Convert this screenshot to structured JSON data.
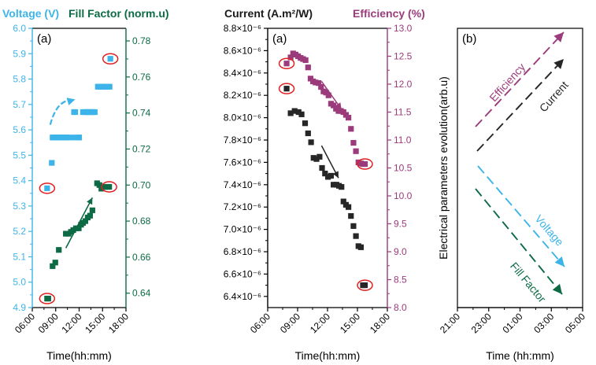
{
  "colors": {
    "voltage": "#3db4e9",
    "fill_factor": "#0c6b45",
    "current": "#262626",
    "efficiency": "#9b3b7b",
    "marker_circle": "#e02020"
  },
  "chart_data": [
    {
      "type": "scatter",
      "panel_label": "(a)",
      "xlabel": "Time(hh:mm)",
      "xlim": [
        6,
        18
      ],
      "xticks": [
        "06:00",
        "09:00",
        "12:00",
        "15:00",
        "18:00"
      ],
      "y_left": {
        "label": "Voltage (V)",
        "ylim": [
          4.9,
          6.0
        ],
        "ticks": [
          "4.9",
          "5.0",
          "5.1",
          "5.2",
          "5.3",
          "5.4",
          "5.5",
          "5.6",
          "5.7",
          "5.8",
          "5.9",
          "6.0"
        ]
      },
      "y_right": {
        "label": "Fill Factor (norm.u)",
        "ylim": [
          0.632,
          0.787
        ],
        "ticks": [
          "0.64",
          "0.66",
          "0.68",
          "0.70",
          "0.72",
          "0.74",
          "0.76",
          "0.78"
        ]
      },
      "series": [
        {
          "name": "Voltage (V)",
          "axis": "left",
          "x": [
            7.9,
            8.5,
            8.6,
            8.75,
            8.9,
            9.05,
            9.2,
            9.35,
            9.5,
            9.65,
            9.8,
            9.95,
            10.1,
            10.25,
            10.4,
            10.5,
            11.2,
            11.35,
            11.5,
            11.85,
            12.0,
            12.5,
            12.65,
            12.8,
            12.95,
            13.1,
            13.25,
            13.4,
            13.55,
            13.7,
            13.85,
            14.0,
            14.4,
            14.55,
            14.7,
            14.85,
            15.0,
            15.15,
            15.3,
            15.45,
            15.6,
            15.75,
            15.9,
            16.0
          ],
          "y": [
            5.37,
            5.47,
            5.57,
            5.57,
            5.57,
            5.57,
            5.57,
            5.57,
            5.57,
            5.57,
            5.57,
            5.57,
            5.57,
            5.57,
            5.57,
            5.57,
            5.57,
            5.67,
            5.67,
            5.57,
            5.57,
            5.67,
            5.67,
            5.67,
            5.67,
            5.67,
            5.67,
            5.67,
            5.67,
            5.67,
            5.67,
            5.67,
            5.77,
            5.77,
            5.77,
            5.77,
            5.77,
            5.77,
            5.77,
            5.77,
            5.77,
            5.77,
            5.77,
            5.88
          ],
          "circled_x": [
            7.9,
            16.0
          ]
        },
        {
          "name": "Fill Factor (norm.u)",
          "axis": "right",
          "x": [
            7.9,
            8.05,
            8.6,
            8.95,
            9.4,
            10.3,
            10.65,
            10.95,
            11.25,
            11.6,
            11.95,
            12.25,
            12.5,
            12.8,
            13.1,
            13.4,
            13.7,
            14.3,
            14.6,
            14.85,
            15.1,
            15.35,
            15.6,
            15.85
          ],
          "y": [
            0.637,
            0.637,
            0.655,
            0.657,
            0.664,
            0.673,
            0.673,
            0.674,
            0.675,
            0.676,
            0.676,
            0.678,
            0.679,
            0.68,
            0.682,
            0.683,
            0.686,
            0.701,
            0.7,
            0.698,
            0.699,
            0.699,
            0.699,
            0.699
          ],
          "circled_x": [
            7.9,
            15.85
          ]
        }
      ],
      "arrows": [
        {
          "series": "Voltage (V)",
          "from": [
            8.3,
            5.62
          ],
          "to": [
            11.5,
            5.72
          ],
          "curved": true
        },
        {
          "series": "Fill Factor (norm.u)",
          "from": [
            10.3,
            0.665
          ],
          "to": [
            13.7,
            0.693
          ]
        }
      ]
    },
    {
      "type": "scatter",
      "panel_label": "(a)",
      "xlabel": "Time(hh:mm)",
      "xlim": [
        6,
        18
      ],
      "xticks": [
        "06:00",
        "09:00",
        "12:00",
        "15:00",
        "18:00"
      ],
      "y_left": {
        "label": "Current (A.m²/W)",
        "ylim": [
          6.3e-06,
          8.8e-06
        ],
        "ticks": [
          "6.4×10⁻⁶",
          "6.6×10⁻⁶",
          "6.8×10⁻⁶",
          "7.0×10⁻⁶",
          "7.2×10⁻⁶",
          "7.4×10⁻⁶",
          "7.6×10⁻⁶",
          "7.8×10⁻⁶",
          "8.0×10⁻⁶",
          "8.2×10⁻⁶",
          "8.4×10⁻⁶",
          "8.6×10⁻⁶",
          "8.8×10⁻⁶"
        ]
      },
      "y_right": {
        "label": "Efficiency (%)",
        "ylim": [
          8.0,
          13.0
        ],
        "ticks": [
          "8.0",
          "8.5",
          "9.0",
          "9.5",
          "10.0",
          "10.5",
          "11.0",
          "11.5",
          "12.0",
          "12.5",
          "13.0"
        ]
      },
      "series": [
        {
          "name": "Current (A.m²/W)",
          "axis": "left",
          "x": [
            7.9,
            8.3,
            8.7,
            9.1,
            9.4,
            9.75,
            10.05,
            10.35,
            10.6,
            10.9,
            11.2,
            11.45,
            11.75,
            12.05,
            12.35,
            12.6,
            12.9,
            13.15,
            13.4,
            13.6,
            13.85,
            14.1,
            14.35,
            14.6,
            14.85,
            15.1,
            15.35,
            15.55,
            15.75
          ],
          "y": [
            8.26e-06,
            8.04e-06,
            8.06e-06,
            8.05e-06,
            8.03e-06,
            7.95e-06,
            7.86e-06,
            7.78e-06,
            7.64e-06,
            7.63e-06,
            7.65e-06,
            7.55e-06,
            7.5e-06,
            7.47e-06,
            7.48e-06,
            7.4e-06,
            7.4e-06,
            7.39e-06,
            7.38e-06,
            7.25e-06,
            7.22e-06,
            7.2e-06,
            7.12e-06,
            7.03e-06,
            6.94e-06,
            6.85e-06,
            6.84e-06,
            6.5e-06,
            6.5e-06
          ],
          "circled_x": [
            7.9,
            15.75
          ]
        },
        {
          "name": "Efficiency (%)",
          "axis": "right",
          "x": [
            7.9,
            8.3,
            8.55,
            8.8,
            9.05,
            9.3,
            9.55,
            9.8,
            10.05,
            10.3,
            10.55,
            10.8,
            11.1,
            11.35,
            11.6,
            11.85,
            12.1,
            12.35,
            12.6,
            12.85,
            13.1,
            13.35,
            13.6,
            13.85,
            14.1,
            14.35,
            14.6,
            14.85,
            15.1,
            15.35,
            15.55,
            15.75
          ],
          "y": [
            12.37,
            12.48,
            12.55,
            12.53,
            12.5,
            12.47,
            12.45,
            12.43,
            12.3,
            12.1,
            12.05,
            12.03,
            12.02,
            11.95,
            11.87,
            11.85,
            11.8,
            11.65,
            11.62,
            11.56,
            11.52,
            11.52,
            11.5,
            11.45,
            11.4,
            11.2,
            10.95,
            10.8,
            10.6,
            10.58,
            10.57,
            10.57
          ],
          "circled_x": [
            7.9,
            15.75
          ]
        }
      ],
      "arrows": [
        {
          "series": "Efficiency (%)",
          "from": [
            11.4,
            12.05
          ],
          "to": [
            13.4,
            11.55
          ]
        },
        {
          "series": "Current (A.m²/W)",
          "from": [
            11.4,
            7.75e-06
          ],
          "to": [
            13.1,
            7.46e-06
          ]
        }
      ]
    },
    {
      "type": "line",
      "panel_label": "(b)",
      "xlabel": "Time (hh:mm)",
      "ylabel": "Electrical parameters evolution(arb.u)",
      "xticks": [
        "21:00",
        "23:00",
        "01:00",
        "03:00",
        "05:00"
      ],
      "series": [
        {
          "name": "Efficiency",
          "trend": "increasing"
        },
        {
          "name": "Current",
          "trend": "increasing"
        },
        {
          "name": "Voltage",
          "trend": "decreasing"
        },
        {
          "name": "Fill Factor",
          "trend": "decreasing"
        }
      ]
    }
  ]
}
